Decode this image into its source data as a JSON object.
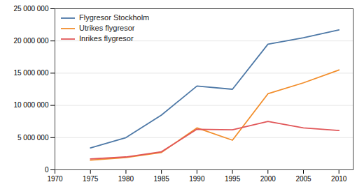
{
  "chart_data": {
    "type": "line",
    "x": [
      1975,
      1980,
      1985,
      1990,
      1995,
      2000,
      2005,
      2010
    ],
    "series": [
      {
        "name": "Flygresor Stockholm",
        "values": [
          3400000,
          5000000,
          8500000,
          13000000,
          12500000,
          19500000,
          20500000,
          21700000
        ]
      },
      {
        "name": "Utrikes flygresor",
        "values": [
          1500000,
          1900000,
          2700000,
          6500000,
          4600000,
          11800000,
          13500000,
          15500000
        ]
      },
      {
        "name": "Inrikes flygresor",
        "values": [
          1700000,
          2000000,
          2800000,
          6300000,
          6200000,
          7500000,
          6500000,
          6100000
        ]
      }
    ],
    "xlim": [
      1970,
      2012
    ],
    "ylim": [
      0,
      25000000
    ],
    "xticks": [
      1970,
      1975,
      1980,
      1985,
      1990,
      1995,
      2000,
      2005,
      2010
    ],
    "yticks": [
      0,
      {
        "value": 5000000,
        "label": "5 000 000"
      },
      {
        "value": 10000000,
        "label": "10 000 000"
      },
      {
        "value": 15000000,
        "label": "15 000 000"
      },
      {
        "value": 20000000,
        "label": "20 000 000"
      },
      {
        "value": 25000000,
        "label": "25 000 000"
      }
    ],
    "grid": true,
    "legend": "upper left"
  }
}
